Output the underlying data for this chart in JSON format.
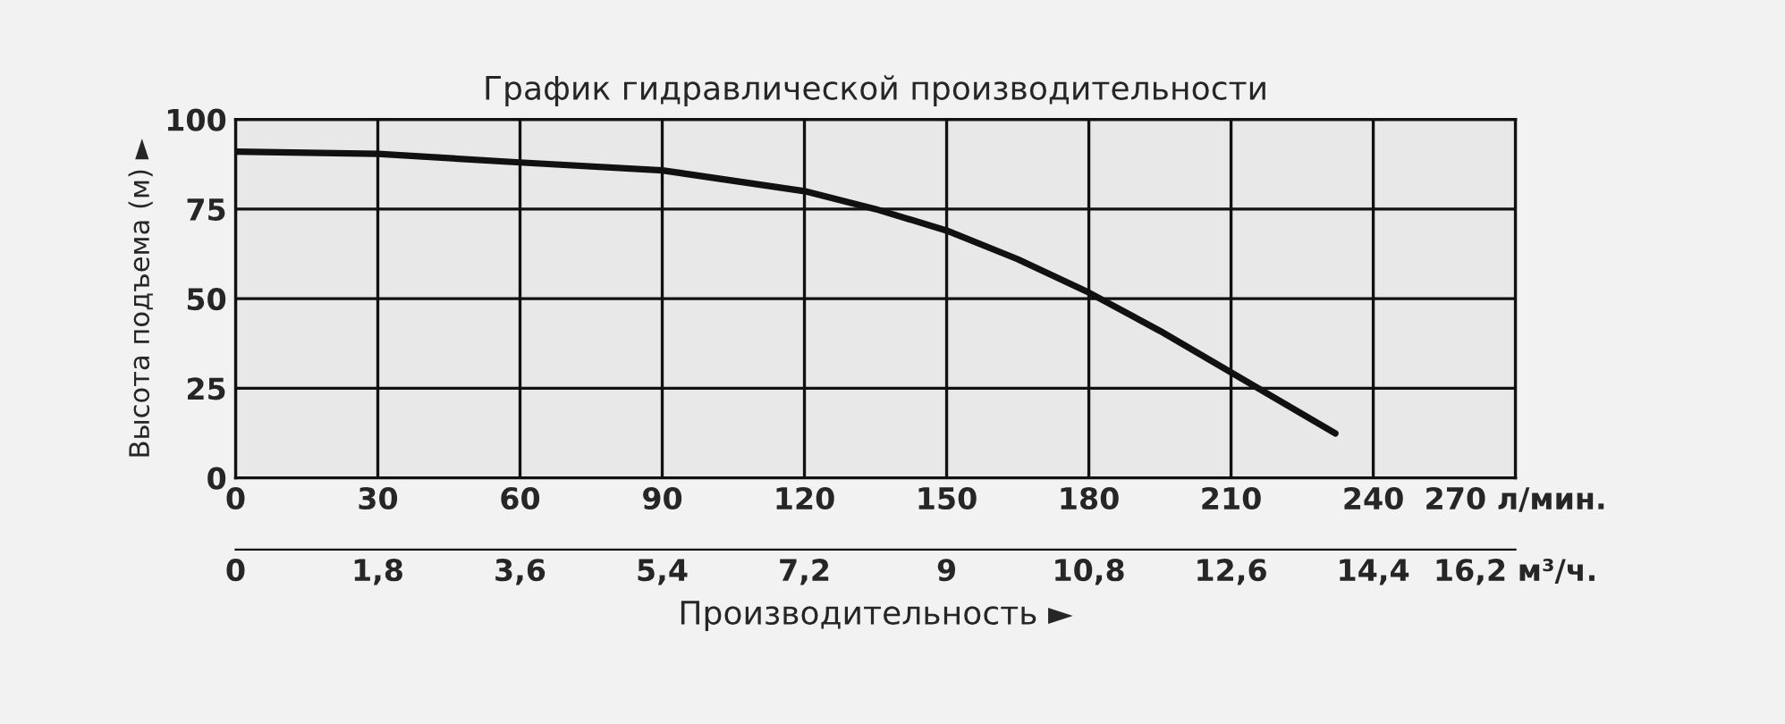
{
  "chart_data": {
    "type": "line",
    "title": "График гидравлической производительности",
    "xlabel": "Производительность ►",
    "ylabel": "Высота подъема (м) ►",
    "x2label": null,
    "x": [
      0,
      30,
      60,
      90,
      120,
      135,
      150,
      165,
      180,
      195,
      210,
      232
    ],
    "series": [
      {
        "color": "#111111",
        "values": [
          91,
          90.4,
          88,
          85.8,
          80,
          75,
          69,
          61,
          51.7,
          41,
          29.4,
          12.4
        ]
      }
    ],
    "xlim": [
      0,
      270
    ],
    "xticks": [
      0,
      30,
      60,
      90,
      120,
      150,
      180,
      210,
      240,
      {
        "value": 270,
        "label": "270 л/мин."
      }
    ],
    "x2lim": [
      0,
      16.2
    ],
    "x2ticks": [
      0,
      {
        "value": 1.8,
        "label": "1,8"
      },
      {
        "value": 3.6,
        "label": "3,6"
      },
      {
        "value": 5.4,
        "label": "5,4"
      },
      {
        "value": 7.2,
        "label": "7,2"
      },
      9,
      {
        "value": 10.8,
        "label": "10,8"
      },
      {
        "value": 12.6,
        "label": "12,6"
      },
      {
        "value": 14.4,
        "label": "14,4"
      },
      {
        "value": 16.2,
        "label": "16,2 м³/ч."
      }
    ],
    "ylim": [
      0,
      100
    ],
    "yticks": [
      0,
      25,
      50,
      75,
      100
    ],
    "grid": true,
    "marker": "none",
    "line_style": "solid",
    "legend": false
  }
}
